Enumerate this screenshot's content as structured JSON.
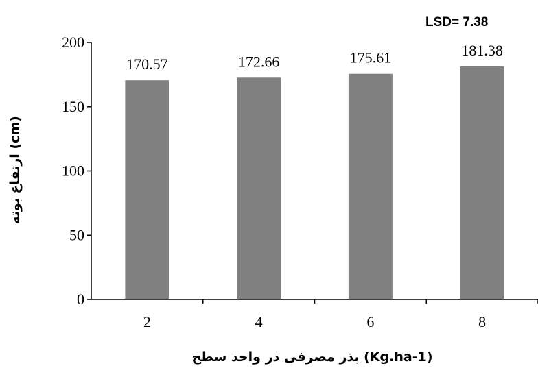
{
  "chart_data": {
    "type": "bar",
    "categories": [
      "2",
      "4",
      "6",
      "8"
    ],
    "values": [
      170.57,
      172.66,
      175.61,
      181.38
    ],
    "data_labels": [
      "170.57",
      "172.66",
      "175.61",
      "181.38"
    ],
    "ylim": [
      0,
      200
    ],
    "yticks": [
      "0",
      "50",
      "100",
      "150",
      "200"
    ],
    "xlabel": "بذر مصرفی در واحد سطح (Kg.ha-1)",
    "ylabel": "ارتفاع بوته (cm)",
    "annotation": "LSD= 7.38",
    "grid": false,
    "legend": "none",
    "colors": {
      "bar": "#808080",
      "axis": "#000000"
    }
  }
}
